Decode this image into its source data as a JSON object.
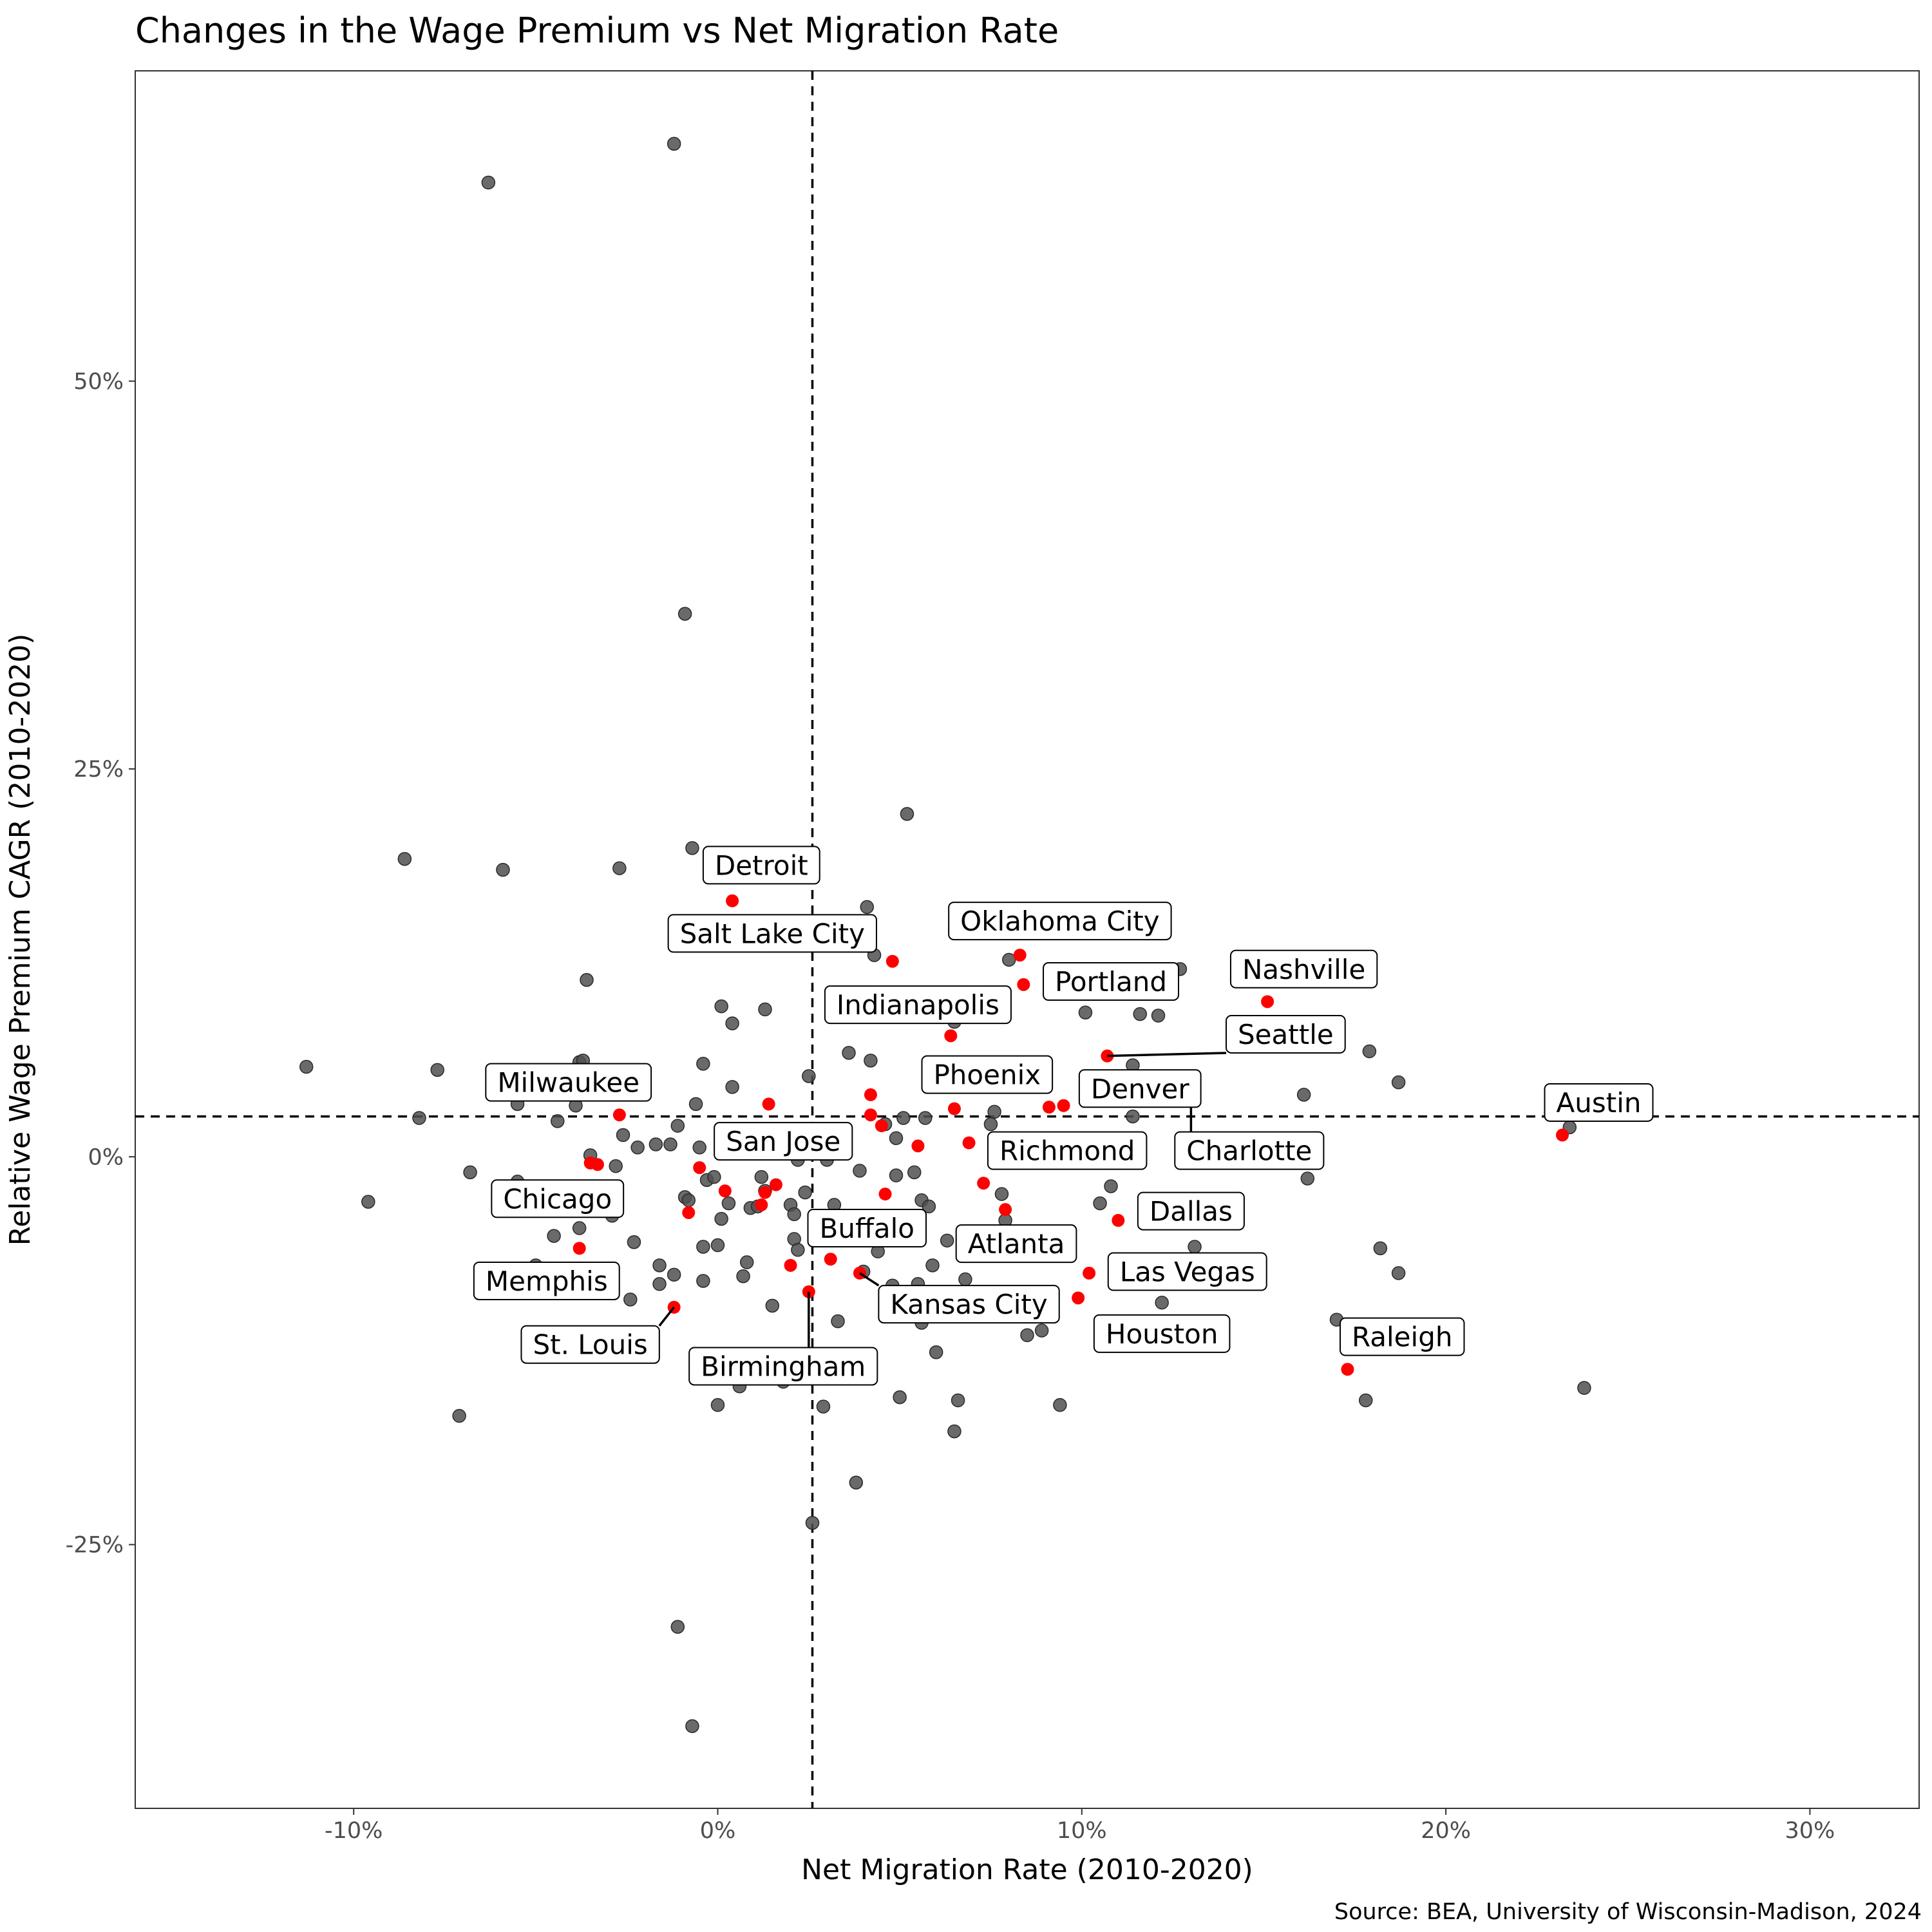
{
  "chart_data": {
    "type": "scatter",
    "title": "Changes in the Wage Premium vs Net Migration Rate",
    "xlabel": "Net Migration Rate (2010-2020)",
    "ylabel": "Relative Wage Premium CAGR (2010-2020)",
    "caption": "Source: BEA, University of Wisconsin-Madison, 2024",
    "xlim": [
      -16,
      33
    ],
    "ylim": [
      -42,
      70
    ],
    "x_ticks": [
      -10,
      0,
      10,
      20,
      30
    ],
    "x_tick_labels": [
      "-10%",
      "0%",
      "10%",
      "20%",
      "30%"
    ],
    "y_ticks": [
      -25,
      0,
      25,
      50
    ],
    "y_tick_labels": [
      "-25%",
      "0%",
      "25%",
      "50%"
    ],
    "reference_lines": {
      "x": 2.6,
      "y": 2.6
    },
    "grid": false,
    "colors": {
      "other": "#505050",
      "highlighted": "#ff0000"
    },
    "other_points": [
      [
        -11.3,
        5.8
      ],
      [
        -9.6,
        -2.9
      ],
      [
        -8.6,
        19.2
      ],
      [
        -8.2,
        2.5
      ],
      [
        -7.7,
        5.6
      ],
      [
        -7.1,
        -16.7
      ],
      [
        -6.8,
        -1.0
      ],
      [
        -6.3,
        62.8
      ],
      [
        -5.9,
        18.5
      ],
      [
        -5.5,
        3.4
      ],
      [
        -5.5,
        -1.6
      ],
      [
        -5.0,
        -7.0
      ],
      [
        -4.5,
        -5.1
      ],
      [
        -4.4,
        2.3
      ],
      [
        -3.9,
        3.3
      ],
      [
        -3.8,
        6.1
      ],
      [
        -3.8,
        -4.6
      ],
      [
        -3.7,
        6.2
      ],
      [
        -3.6,
        11.4
      ],
      [
        -3.5,
        0.1
      ],
      [
        -3.0,
        -2.0
      ],
      [
        -2.9,
        -3.8
      ],
      [
        -2.8,
        -0.6
      ],
      [
        -2.7,
        18.6
      ],
      [
        -2.6,
        1.4
      ],
      [
        -2.4,
        -9.2
      ],
      [
        -2.3,
        -5.5
      ],
      [
        -2.2,
        0.6
      ],
      [
        -1.7,
        0.8
      ],
      [
        -1.6,
        -7.0
      ],
      [
        -1.6,
        -8.2
      ],
      [
        -1.3,
        0.8
      ],
      [
        -1.2,
        -7.6
      ],
      [
        -1.2,
        65.3
      ],
      [
        -1.1,
        2.0
      ],
      [
        -1.1,
        -30.3
      ],
      [
        -0.9,
        -2.6
      ],
      [
        -0.9,
        35.0
      ],
      [
        -0.8,
        -2.8
      ],
      [
        -0.7,
        19.9
      ],
      [
        -0.7,
        -36.7
      ],
      [
        -0.6,
        3.4
      ],
      [
        -0.5,
        0.6
      ],
      [
        -0.4,
        6.0
      ],
      [
        -0.4,
        -8.0
      ],
      [
        -0.4,
        -5.8
      ],
      [
        -0.3,
        -1.5
      ],
      [
        -0.1,
        -1.3
      ],
      [
        0.0,
        -5.7
      ],
      [
        0.0,
        -16.0
      ],
      [
        0.1,
        9.7
      ],
      [
        0.1,
        -4.0
      ],
      [
        0.3,
        -3.0
      ],
      [
        0.4,
        4.5
      ],
      [
        0.4,
        8.6
      ],
      [
        0.6,
        -14.8
      ],
      [
        0.7,
        -7.7
      ],
      [
        0.8,
        -6.8
      ],
      [
        0.9,
        -3.3
      ],
      [
        1.1,
        -3.2
      ],
      [
        1.2,
        -1.3
      ],
      [
        1.3,
        9.5
      ],
      [
        1.3,
        -2.2
      ],
      [
        1.5,
        -9.6
      ],
      [
        1.8,
        -14.5
      ],
      [
        2.0,
        -3.1
      ],
      [
        2.1,
        -3.7
      ],
      [
        2.1,
        -5.3
      ],
      [
        2.2,
        -6.0
      ],
      [
        2.2,
        -0.2
      ],
      [
        2.4,
        -2.3
      ],
      [
        2.5,
        5.2
      ],
      [
        2.6,
        -23.6
      ],
      [
        2.9,
        -16.1
      ],
      [
        3.0,
        -0.2
      ],
      [
        3.2,
        -3.1
      ],
      [
        3.3,
        -10.6
      ],
      [
        3.6,
        6.7
      ],
      [
        3.8,
        -21.0
      ],
      [
        3.9,
        -0.9
      ],
      [
        4.0,
        -7.4
      ],
      [
        4.1,
        16.1
      ],
      [
        4.2,
        6.2
      ],
      [
        4.3,
        13.0
      ],
      [
        4.4,
        -6.1
      ],
      [
        4.6,
        2.1
      ],
      [
        4.8,
        -8.3
      ],
      [
        4.9,
        -1.2
      ],
      [
        4.9,
        1.2
      ],
      [
        5.0,
        -15.5
      ],
      [
        5.1,
        2.5
      ],
      [
        5.2,
        22.1
      ],
      [
        5.4,
        -1.0
      ],
      [
        5.5,
        -8.2
      ],
      [
        5.6,
        -10.7
      ],
      [
        5.6,
        -2.8
      ],
      [
        5.7,
        2.5
      ],
      [
        5.8,
        -3.2
      ],
      [
        5.9,
        -7.0
      ],
      [
        6.0,
        -12.6
      ],
      [
        6.3,
        -5.4
      ],
      [
        6.5,
        8.7
      ],
      [
        6.5,
        -17.7
      ],
      [
        6.6,
        -15.7
      ],
      [
        6.8,
        -7.9
      ],
      [
        7.5,
        2.1
      ],
      [
        7.6,
        2.9
      ],
      [
        7.8,
        -2.4
      ],
      [
        7.9,
        -4.1
      ],
      [
        8.0,
        12.7
      ],
      [
        8.5,
        -11.5
      ],
      [
        8.9,
        -11.2
      ],
      [
        9.4,
        -16.0
      ],
      [
        10.1,
        9.3
      ],
      [
        10.5,
        -3.0
      ],
      [
        10.8,
        -1.9
      ],
      [
        11.4,
        5.9
      ],
      [
        11.4,
        2.6
      ],
      [
        11.6,
        9.2
      ],
      [
        12.1,
        9.1
      ],
      [
        12.2,
        -9.4
      ],
      [
        12.7,
        12.1
      ],
      [
        13.1,
        -5.8
      ],
      [
        16.1,
        4.0
      ],
      [
        16.2,
        -1.4
      ],
      [
        17.0,
        -10.5
      ],
      [
        17.8,
        -15.7
      ],
      [
        17.9,
        6.8
      ],
      [
        18.2,
        -5.9
      ],
      [
        18.7,
        -7.5
      ],
      [
        18.7,
        4.8
      ],
      [
        23.4,
        1.9
      ],
      [
        23.8,
        -14.9
      ]
    ],
    "highlighted_points": [
      [
        -3.8,
        -5.9
      ],
      [
        -3.5,
        -0.4
      ],
      [
        -3.3,
        -0.5
      ],
      [
        -2.7,
        2.7
      ],
      [
        -1.2,
        -9.7
      ],
      [
        -0.8,
        -3.6
      ],
      [
        -0.5,
        -0.7
      ],
      [
        0.2,
        -2.2
      ],
      [
        0.4,
        16.5
      ],
      [
        1.2,
        -3.1
      ],
      [
        1.3,
        -2.3
      ],
      [
        1.4,
        3.4
      ],
      [
        1.6,
        -1.8
      ],
      [
        2.0,
        -7.0
      ],
      [
        2.5,
        -8.7
      ],
      [
        3.1,
        -6.6
      ],
      [
        3.9,
        -7.5
      ],
      [
        4.2,
        2.7
      ],
      [
        4.2,
        4.0
      ],
      [
        4.5,
        2.0
      ],
      [
        4.6,
        -2.4
      ],
      [
        4.8,
        12.6
      ],
      [
        5.5,
        0.7
      ],
      [
        6.4,
        7.8
      ],
      [
        6.5,
        3.1
      ],
      [
        6.9,
        0.9
      ],
      [
        7.3,
        -1.7
      ],
      [
        7.9,
        -3.4
      ],
      [
        8.3,
        13.0
      ],
      [
        8.4,
        11.1
      ],
      [
        9.1,
        3.2
      ],
      [
        9.5,
        3.3
      ],
      [
        9.9,
        -9.1
      ],
      [
        10.2,
        -7.5
      ],
      [
        10.7,
        6.5
      ],
      [
        11.0,
        -4.1
      ],
      [
        13.0,
        3.9
      ],
      [
        15.1,
        10.0
      ],
      [
        17.3,
        -13.7
      ],
      [
        23.2,
        1.4
      ]
    ],
    "labels": [
      {
        "text": "Detroit",
        "point": [
          0.4,
          16.5
        ],
        "at": [
          1.2,
          18.8
        ]
      },
      {
        "text": "Salt Lake City",
        "point": [
          4.8,
          12.6
        ],
        "at": [
          1.5,
          14.4
        ]
      },
      {
        "text": "Oklahoma City",
        "point": [
          8.3,
          13.0
        ],
        "at": [
          9.4,
          15.2
        ]
      },
      {
        "text": "Portland",
        "point": [
          8.4,
          11.1
        ],
        "at": [
          10.8,
          11.3
        ]
      },
      {
        "text": "Nashville",
        "point": [
          15.1,
          10.0
        ],
        "at": [
          16.1,
          12.1
        ]
      },
      {
        "text": "Indianapolis",
        "point": [
          6.4,
          7.8
        ],
        "at": [
          5.5,
          9.8
        ]
      },
      {
        "text": "Seattle",
        "point": [
          10.7,
          6.5
        ],
        "at": [
          15.6,
          7.9
        ],
        "leader": true
      },
      {
        "text": "Milwaukee",
        "point": [
          -2.7,
          2.7
        ],
        "at": [
          -4.1,
          4.8
        ]
      },
      {
        "text": "Phoenix",
        "point": [
          6.5,
          3.1
        ],
        "at": [
          7.4,
          5.3
        ]
      },
      {
        "text": "Denver",
        "point": [
          9.5,
          3.3
        ],
        "at": [
          11.6,
          4.4
        ]
      },
      {
        "text": "Austin",
        "point": [
          23.2,
          1.4
        ],
        "at": [
          24.2,
          3.5
        ]
      },
      {
        "text": "Charlotte",
        "point": [
          13.0,
          3.9
        ],
        "at": [
          14.6,
          0.4
        ],
        "leader": true
      },
      {
        "text": "San Jose",
        "point": [
          1.6,
          -1.8
        ],
        "at": [
          1.8,
          1.0
        ]
      },
      {
        "text": "Richmond",
        "point": [
          6.9,
          0.9
        ],
        "at": [
          9.6,
          0.4
        ]
      },
      {
        "text": "Chicago",
        "point": [
          -3.8,
          -5.9
        ],
        "at": [
          -4.4,
          -2.7
        ]
      },
      {
        "text": "Dallas",
        "point": [
          11.0,
          -4.1
        ],
        "at": [
          13.0,
          -3.5
        ]
      },
      {
        "text": "Buffalo",
        "point": [
          3.1,
          -6.6
        ],
        "at": [
          4.1,
          -4.6
        ]
      },
      {
        "text": "Atlanta",
        "point": [
          7.9,
          -3.4
        ],
        "at": [
          8.2,
          -5.6
        ]
      },
      {
        "text": "Las Vegas",
        "point": [
          10.2,
          -7.5
        ],
        "at": [
          12.9,
          -7.4
        ]
      },
      {
        "text": "Memphis",
        "point": [
          -3.8,
          -5.9
        ],
        "at": [
          -4.7,
          -8.0
        ]
      },
      {
        "text": "Kansas City",
        "point": [
          3.9,
          -7.5
        ],
        "at": [
          6.9,
          -9.5
        ],
        "leader": true
      },
      {
        "text": "Houston",
        "point": [
          9.9,
          -9.1
        ],
        "at": [
          12.2,
          -11.4
        ]
      },
      {
        "text": "Raleigh",
        "point": [
          17.3,
          -13.7
        ],
        "at": [
          18.8,
          -11.6
        ]
      },
      {
        "text": "St. Louis",
        "point": [
          -1.2,
          -9.7
        ],
        "at": [
          -3.5,
          -12.1
        ],
        "leader": true
      },
      {
        "text": "Birmingham",
        "point": [
          2.5,
          -8.7
        ],
        "at": [
          1.8,
          -13.5
        ],
        "leader": true
      }
    ]
  }
}
